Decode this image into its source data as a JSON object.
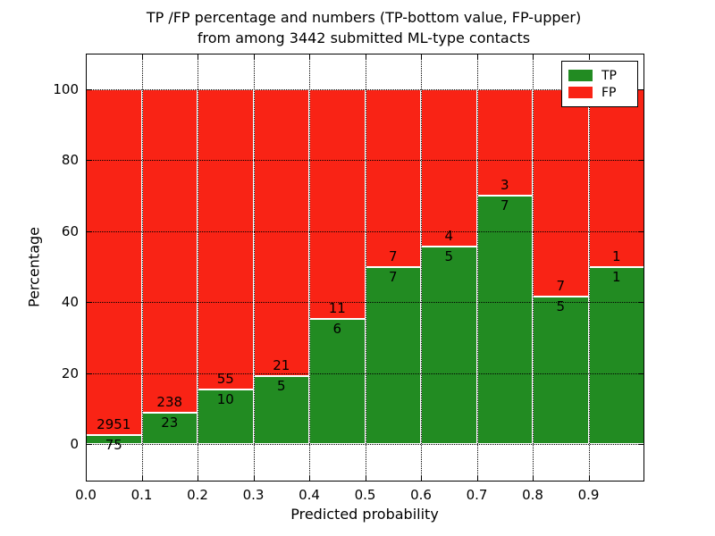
{
  "title": {
    "line1": "TP /FP percentage and numbers (TP-bottom value, FP-upper)",
    "line2": "from among 3442 submitted ML-type contacts"
  },
  "chart_data": {
    "type": "bar",
    "stacked": true,
    "normalized_to_percent": true,
    "title": "TP /FP percentage and numbers (TP-bottom value, FP-upper) from among 3442 submitted ML-type contacts",
    "xlabel": "Predicted probability",
    "ylabel": "Percentage",
    "total_contacts": 3442,
    "xlim": [
      0.0,
      1.0
    ],
    "ylim": [
      -10.6,
      110.1
    ],
    "grid": true,
    "grid_style": "dotted",
    "x_tick_labels": [
      "0.0",
      "0.1",
      "0.2",
      "0.3",
      "0.4",
      "0.5",
      "0.6",
      "0.7",
      "0.8",
      "0.9"
    ],
    "y_tick_values": [
      0,
      20,
      40,
      60,
      80,
      100
    ],
    "bin_width": 0.1,
    "colors": {
      "tp": "#228b22",
      "fp": "#f92315",
      "grid": "#000000",
      "background": "#ffffff"
    },
    "legend": {
      "position": "upper right",
      "entries": [
        {
          "label": "TP",
          "color": "#228b22"
        },
        {
          "label": "FP",
          "color": "#f92315"
        }
      ]
    },
    "series": [
      {
        "name": "TP",
        "color": "#228b22",
        "counts": [
          75,
          23,
          10,
          5,
          6,
          7,
          5,
          7,
          5,
          1
        ],
        "values_pct": [
          2.48,
          8.81,
          15.38,
          19.23,
          35.29,
          50.0,
          55.56,
          70.0,
          41.67,
          50.0
        ]
      },
      {
        "name": "FP",
        "color": "#f92315",
        "counts": [
          2951,
          238,
          55,
          21,
          11,
          7,
          4,
          3,
          7,
          1
        ],
        "values_pct": [
          97.52,
          91.19,
          84.62,
          80.77,
          64.71,
          50.0,
          44.44,
          30.0,
          58.33,
          50.0
        ]
      }
    ],
    "bins": [
      {
        "range": "0.0-0.1",
        "tp": 75,
        "fp": 2951,
        "tp_pct": 2.48
      },
      {
        "range": "0.1-0.2",
        "tp": 23,
        "fp": 238,
        "tp_pct": 8.81
      },
      {
        "range": "0.2-0.3",
        "tp": 10,
        "fp": 55,
        "tp_pct": 15.38
      },
      {
        "range": "0.3-0.4",
        "tp": 5,
        "fp": 21,
        "tp_pct": 19.23
      },
      {
        "range": "0.4-0.5",
        "tp": 6,
        "fp": 11,
        "tp_pct": 35.29
      },
      {
        "range": "0.5-0.6",
        "tp": 7,
        "fp": 7,
        "tp_pct": 50.0
      },
      {
        "range": "0.6-0.7",
        "tp": 5,
        "fp": 4,
        "tp_pct": 55.56
      },
      {
        "range": "0.7-0.8",
        "tp": 7,
        "fp": 3,
        "tp_pct": 70.0
      },
      {
        "range": "0.8-0.9",
        "tp": 5,
        "fp": 7,
        "tp_pct": 41.67
      },
      {
        "range": "0.9-1.0",
        "tp": 1,
        "fp": 1,
        "tp_pct": 50.0
      }
    ]
  }
}
